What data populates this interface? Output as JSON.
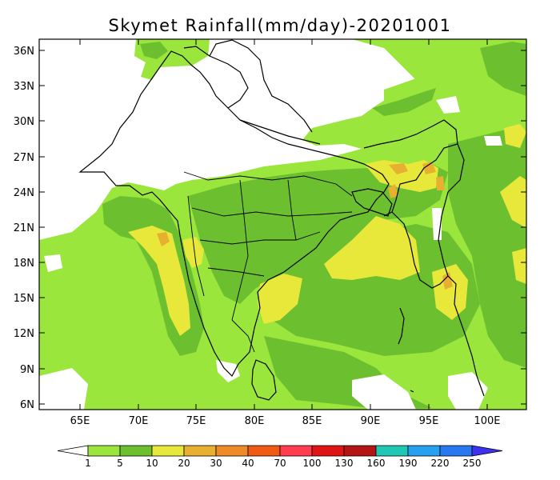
{
  "title": "Skymet Rainfall(mm/day)-20201001",
  "lat_ticks": [
    "36N",
    "33N",
    "30N",
    "27N",
    "24N",
    "21N",
    "18N",
    "15N",
    "12N",
    "9N",
    "6N"
  ],
  "lon_ticks": [
    "65E",
    "70E",
    "75E",
    "80E",
    "85E",
    "90E",
    "95E",
    "100E"
  ],
  "colorbar": {
    "labels": [
      "1",
      "5",
      "10",
      "20",
      "30",
      "40",
      "70",
      "100",
      "130",
      "160",
      "190",
      "220",
      "250"
    ],
    "colors": [
      "#ffffff",
      "#9be63c",
      "#6cc030",
      "#e8e83a",
      "#e8b030",
      "#f08a28",
      "#f05a14",
      "#ff3c50",
      "#e01414",
      "#b41414",
      "#1ec8b4",
      "#28a0f0",
      "#2878f0",
      "#3c32f0"
    ]
  },
  "map_layers": {
    "background": "light-green rainfall (5-10 mm/day)",
    "dry_areas": "white (below 1 mm/day)",
    "moderate": "darker green (10-20 mm/day)",
    "heavy": "yellow (20-30 mm/day)",
    "very_heavy": "orange (30-40 mm/day)"
  }
}
